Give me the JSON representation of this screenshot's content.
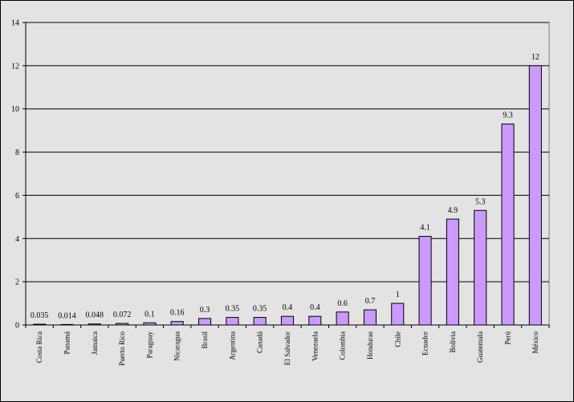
{
  "chart_data": {
    "type": "bar",
    "title": "",
    "xlabel": "",
    "ylabel": "",
    "ylim": [
      0,
      14
    ],
    "ytick_step": 2,
    "grid": true,
    "legend": "none",
    "categories": [
      "Costa Rica",
      "Panamá",
      "Jamaica",
      "Puerto Rico",
      "Paraguay",
      "Nicaragua",
      "Brasil",
      "Argentina",
      "Canadá",
      "El Salvador",
      "Venezuela",
      "Colombia",
      "Honduras",
      "Chile",
      "Ecuador",
      "Bolivia",
      "Guatemala",
      "Perú",
      "México"
    ],
    "values": [
      0.035,
      0.014,
      0.048,
      0.072,
      0.1,
      0.16,
      0.3,
      0.35,
      0.35,
      0.4,
      0.4,
      0.6,
      0.7,
      1,
      4.1,
      4.9,
      5.3,
      9.3,
      12
    ],
    "value_labels": [
      "0.035",
      "0.014",
      "0.048",
      "0.072",
      "0.1",
      "0.16",
      "0.3",
      "0.35",
      "0.35",
      "0.4",
      "0.4",
      "0.6",
      "0.7",
      "1",
      "4.1",
      "4.9",
      "5.3",
      "9.3",
      "12"
    ],
    "colors": {
      "bar_fill": "#cc99ff",
      "bar_stroke": "#000000",
      "plot_background": "#e3e3e3",
      "outer_background": "#e3e3e3",
      "grid": "#000000"
    }
  }
}
